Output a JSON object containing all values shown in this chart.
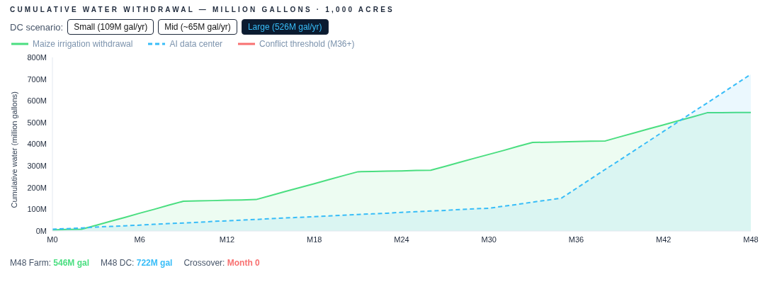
{
  "chart_data": {
    "type": "area",
    "title": "CUMULATIVE WATER WITHDRAWAL — MILLION GALLONS · 1,000 ACRES",
    "ylabel": "Cumulative water (million gallons)",
    "annotations": [
      "DC scenario:",
      "Small (109M gal/yr)",
      "Mid (~65M gal/yr)",
      "Large (526M gal/yr)",
      "M48 Farm: 546M gal",
      "M48 DC: 722M gal",
      "Crossover: Month 0"
    ],
    "categories": [
      "M0",
      null,
      null,
      null,
      null,
      null,
      "M6",
      null,
      null,
      null,
      null,
      null,
      "M12",
      null,
      null,
      null,
      null,
      null,
      "M18",
      null,
      null,
      null,
      null,
      null,
      "M24",
      null,
      null,
      null,
      null,
      null,
      "M30",
      null,
      null,
      null,
      null,
      null,
      "M36",
      null,
      null,
      null,
      null,
      null,
      "M42",
      null,
      null,
      null,
      null,
      null,
      "M48"
    ],
    "series": [
      {
        "name": "Maize irrigation withdrawal",
        "color": "#4ade80",
        "line_style": "solid",
        "values": [
          5,
          7,
          8,
          26,
          45,
          63,
          82,
          100,
          119,
          137,
          139,
          140,
          142,
          143,
          145,
          163,
          182,
          200,
          218,
          237,
          255,
          273,
          274,
          276,
          277,
          279,
          280,
          298,
          317,
          335,
          353,
          371,
          390,
          408,
          409,
          411,
          412,
          414,
          415,
          434,
          452,
          471,
          489,
          508,
          526,
          545,
          545,
          546,
          546
        ]
      },
      {
        "name": "AI data center",
        "color": "#38bdf8",
        "line_style": "dashed",
        "values": [
          8,
          11,
          14,
          18,
          21,
          24,
          27,
          31,
          34,
          37,
          40,
          44,
          47,
          50,
          53,
          57,
          60,
          63,
          66,
          69,
          73,
          76,
          79,
          82,
          86,
          89,
          92,
          95,
          99,
          102,
          105,
          114,
          123,
          133,
          142,
          152,
          196,
          240,
          284,
          327,
          371,
          415,
          459,
          503,
          547,
          590,
          634,
          678,
          722
        ]
      },
      {
        "name": "Conflict threshold (M36+)",
        "color": "#f87171",
        "line_style": "solid",
        "values": [
          null,
          null,
          null,
          null,
          null,
          null,
          null,
          null,
          null,
          null,
          null,
          null,
          null,
          null,
          null,
          null,
          null,
          null,
          null,
          null,
          null,
          null,
          null,
          null,
          null,
          null,
          null,
          null,
          null,
          null,
          null,
          null,
          null,
          null,
          null,
          null,
          null,
          null,
          null,
          null,
          null,
          null,
          null,
          null,
          null,
          null,
          null,
          null,
          null
        ]
      }
    ],
    "ylim": [
      0,
      800
    ],
    "yticks": [
      {
        "value": 0,
        "label": "0M"
      },
      {
        "value": 100,
        "label": "100M"
      },
      {
        "value": 200,
        "label": "200M"
      },
      {
        "value": 300,
        "label": "300M"
      },
      {
        "value": 400,
        "label": "400M"
      },
      {
        "value": 500,
        "label": "500M"
      },
      {
        "value": 600,
        "label": "600M"
      },
      {
        "value": 700,
        "label": "700M"
      },
      {
        "value": 800,
        "label": "800M"
      }
    ],
    "grid": false,
    "legend": "top left"
  }
}
